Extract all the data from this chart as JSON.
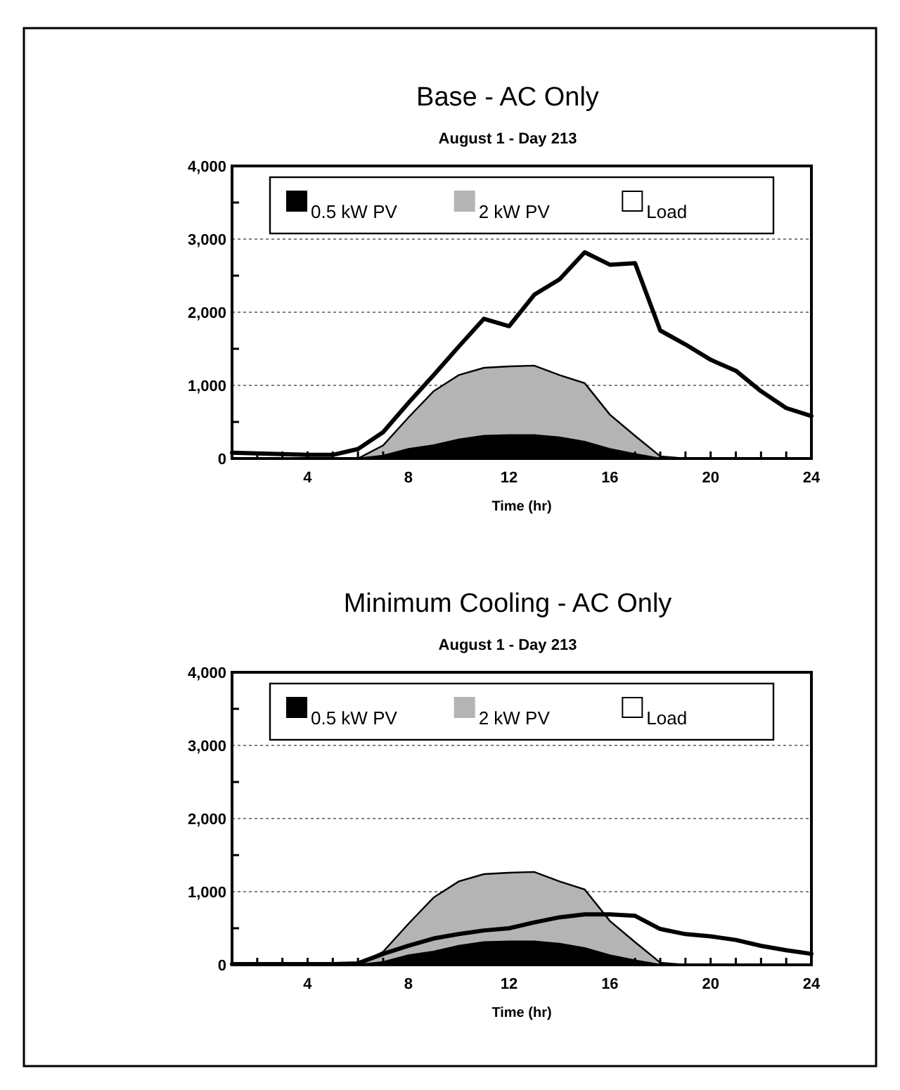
{
  "chart_data": [
    {
      "type": "area",
      "title": "Base - AC Only",
      "subtitle": "August 1 - Day 213",
      "xlabel": "Time (hr)",
      "x": [
        1,
        2,
        3,
        4,
        5,
        6,
        7,
        8,
        9,
        10,
        11,
        12,
        13,
        14,
        15,
        16,
        17,
        18,
        19,
        20,
        21,
        22,
        23,
        24
      ],
      "xlim": [
        1,
        24
      ],
      "xticks": [
        {
          "value": 2,
          "label": null
        },
        {
          "value": 3,
          "label": null
        },
        4,
        {
          "value": 5,
          "label": null
        },
        {
          "value": 6,
          "label": null
        },
        {
          "value": 7,
          "label": null
        },
        8,
        {
          "value": 9,
          "label": null
        },
        {
          "value": 10,
          "label": null
        },
        {
          "value": 11,
          "label": null
        },
        12,
        {
          "value": 13,
          "label": null
        },
        {
          "value": 14,
          "label": null
        },
        {
          "value": 15,
          "label": null
        },
        16,
        {
          "value": 17,
          "label": null
        },
        {
          "value": 18,
          "label": null
        },
        {
          "value": 19,
          "label": null
        },
        20,
        {
          "value": 21,
          "label": null
        },
        {
          "value": 22,
          "label": null
        },
        {
          "value": 23,
          "label": null
        },
        24
      ],
      "ylim": [
        0,
        4000
      ],
      "yticks": [
        0,
        {
          "value": 500,
          "label": null
        },
        {
          "value": 1000,
          "label": "1,000"
        },
        {
          "value": 1500,
          "label": null
        },
        {
          "value": 2000,
          "label": "2,000"
        },
        {
          "value": 2500,
          "label": null
        },
        {
          "value": 3000,
          "label": "3,000"
        },
        {
          "value": 3500,
          "label": null
        },
        {
          "value": 4000,
          "label": "4,000"
        }
      ],
      "grid": "y",
      "legend": "top",
      "series": [
        {
          "name": "0.5 kW PV",
          "color": "#000000",
          "values": [
            0,
            0,
            0,
            0,
            0,
            0,
            40,
            130,
            180,
            260,
            310,
            320,
            320,
            290,
            230,
            130,
            60,
            0,
            0,
            0,
            0,
            0,
            0,
            0
          ]
        },
        {
          "name": "2 kW PV",
          "color": "#b4b4b4",
          "values": [
            0,
            0,
            0,
            0,
            0,
            0,
            180,
            560,
            920,
            1140,
            1240,
            1260,
            1270,
            1140,
            1030,
            600,
            310,
            30,
            0,
            0,
            0,
            0,
            0,
            0
          ]
        },
        {
          "name": "Load",
          "type": "line",
          "color": "#000000",
          "values": [
            80,
            70,
            60,
            50,
            50,
            130,
            360,
            760,
            1140,
            1530,
            1910,
            1810,
            2240,
            2450,
            2820,
            2650,
            2670,
            1750,
            1560,
            1350,
            1200,
            920,
            690,
            580
          ]
        }
      ]
    },
    {
      "type": "area",
      "title": "Minimum Cooling - AC Only",
      "subtitle": "August 1 - Day 213",
      "xlabel": "Time (hr)",
      "x": [
        1,
        2,
        3,
        4,
        5,
        6,
        7,
        8,
        9,
        10,
        11,
        12,
        13,
        14,
        15,
        16,
        17,
        18,
        19,
        20,
        21,
        22,
        23,
        24
      ],
      "xlim": [
        1,
        24
      ],
      "xticks": [
        {
          "value": 2,
          "label": null
        },
        {
          "value": 3,
          "label": null
        },
        4,
        {
          "value": 5,
          "label": null
        },
        {
          "value": 6,
          "label": null
        },
        {
          "value": 7,
          "label": null
        },
        8,
        {
          "value": 9,
          "label": null
        },
        {
          "value": 10,
          "label": null
        },
        {
          "value": 11,
          "label": null
        },
        12,
        {
          "value": 13,
          "label": null
        },
        {
          "value": 14,
          "label": null
        },
        {
          "value": 15,
          "label": null
        },
        16,
        {
          "value": 17,
          "label": null
        },
        {
          "value": 18,
          "label": null
        },
        {
          "value": 19,
          "label": null
        },
        20,
        {
          "value": 21,
          "label": null
        },
        {
          "value": 22,
          "label": null
        },
        {
          "value": 23,
          "label": null
        },
        24
      ],
      "ylim": [
        0,
        4000
      ],
      "yticks": [
        0,
        {
          "value": 500,
          "label": null
        },
        {
          "value": 1000,
          "label": "1,000"
        },
        {
          "value": 1500,
          "label": null
        },
        {
          "value": 2000,
          "label": "2,000"
        },
        {
          "value": 2500,
          "label": null
        },
        {
          "value": 3000,
          "label": "3,000"
        },
        {
          "value": 3500,
          "label": null
        },
        {
          "value": 4000,
          "label": "4,000"
        }
      ],
      "grid": "y",
      "legend": "top",
      "series": [
        {
          "name": "0.5 kW PV",
          "color": "#000000",
          "values": [
            0,
            0,
            0,
            0,
            0,
            0,
            40,
            130,
            180,
            260,
            310,
            320,
            320,
            290,
            230,
            130,
            60,
            0,
            0,
            0,
            0,
            0,
            0,
            0
          ]
        },
        {
          "name": "2 kW PV",
          "color": "#b4b4b4",
          "values": [
            0,
            0,
            0,
            0,
            0,
            0,
            180,
            560,
            920,
            1140,
            1240,
            1260,
            1270,
            1140,
            1030,
            600,
            310,
            30,
            0,
            0,
            0,
            0,
            0,
            0
          ]
        },
        {
          "name": "Load",
          "type": "line",
          "color": "#000000",
          "values": [
            10,
            10,
            10,
            10,
            10,
            20,
            150,
            260,
            360,
            420,
            470,
            500,
            580,
            650,
            690,
            690,
            670,
            490,
            420,
            390,
            340,
            260,
            200,
            150
          ]
        }
      ]
    }
  ]
}
